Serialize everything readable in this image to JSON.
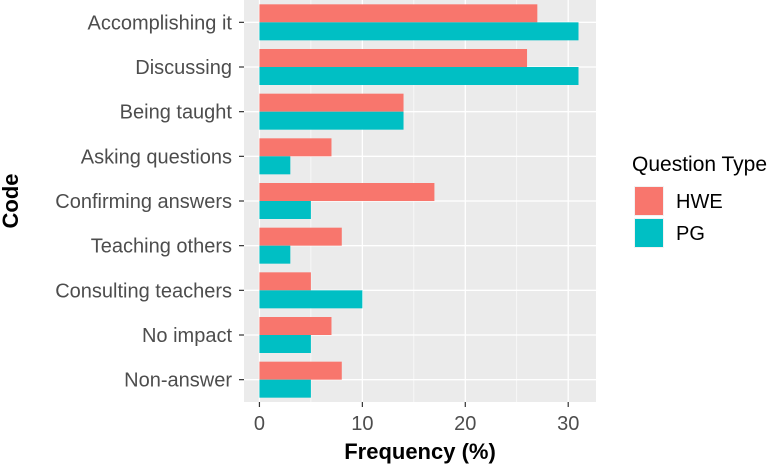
{
  "chart_data": {
    "type": "bar",
    "orientation": "horizontal",
    "categories": [
      "Accomplishing it",
      "Discussing",
      "Being taught",
      "Asking questions",
      "Confirming answers",
      "Teaching others",
      "Consulting teachers",
      "No impact",
      "Non-answer"
    ],
    "series": [
      {
        "name": "HWE",
        "color": "#F8766D",
        "values": [
          27,
          26,
          14,
          7,
          17,
          8,
          5,
          7,
          8
        ]
      },
      {
        "name": "PG",
        "color": "#00BFC4",
        "values": [
          31,
          31,
          14,
          3,
          5,
          3,
          10,
          5,
          5
        ]
      }
    ],
    "xlabel": "Frequency (%)",
    "ylabel": "Code",
    "xlim": [
      -1.5,
      32.7
    ],
    "xticks": [
      0,
      10,
      20,
      30
    ],
    "legend_title": "Question Type",
    "legend_position": "right",
    "panel_background": "#EBEBEB",
    "grid": true
  }
}
